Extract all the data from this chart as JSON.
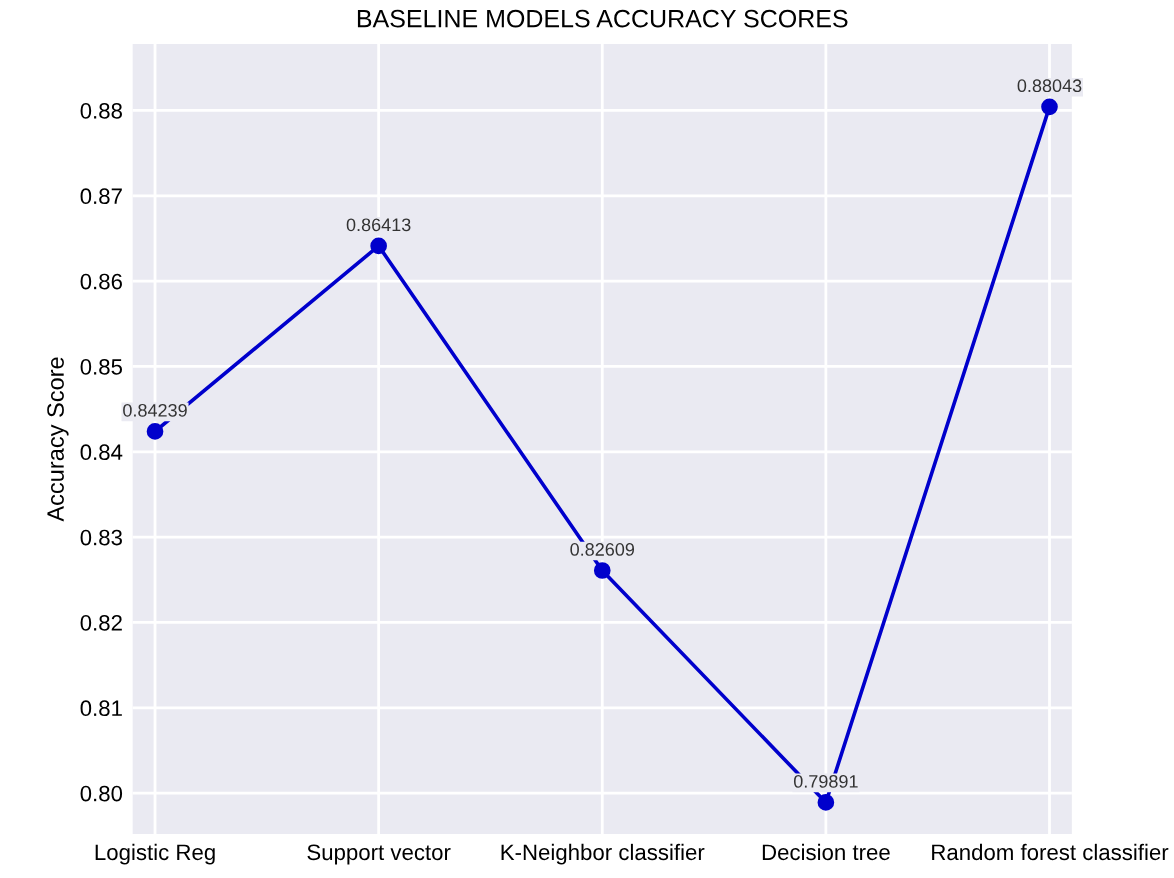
{
  "chart_data": {
    "type": "line",
    "title": "BASELINE MODELS ACCURACY SCORES",
    "ylabel": "Accuracy Score",
    "categories": [
      "Logistic Reg",
      "Support vector",
      "K-Neighbor classifier",
      "Decision tree",
      "Random forest classifier"
    ],
    "series": [
      {
        "color": "#0000cc",
        "values": [
          0.84239,
          0.86413,
          0.82609,
          0.79891,
          0.88043
        ]
      }
    ],
    "ylim": [
      0.7952,
      0.8878
    ],
    "yticks": [
      {
        "value": 0.8,
        "label": "0.80"
      },
      {
        "value": 0.81,
        "label": "0.81"
      },
      {
        "value": 0.82,
        "label": "0.82"
      },
      {
        "value": 0.83,
        "label": "0.83"
      },
      {
        "value": 0.84,
        "label": "0.84"
      },
      {
        "value": 0.85,
        "label": "0.85"
      },
      {
        "value": 0.86,
        "label": "0.86"
      },
      {
        "value": 0.87,
        "label": "0.87"
      },
      {
        "value": 0.88,
        "label": "0.88"
      }
    ],
    "data_labels": true,
    "grid": true,
    "marker": "circle",
    "line_style": "solid",
    "legend": false
  }
}
